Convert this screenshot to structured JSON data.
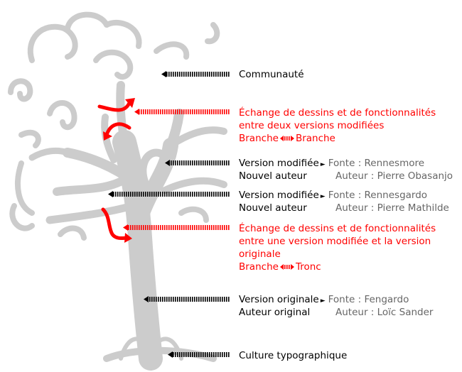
{
  "annotations": {
    "communaute": "Communauté",
    "echange1": {
      "line1": "Échange de dessins et de fonctionnalités",
      "line2": "entre deux versions modifiées",
      "from": "Branche",
      "to": "Branche"
    },
    "version1": {
      "title": "Version modifiée",
      "author_label": "Nouvel auteur",
      "font": "Fonte : Rennesmore",
      "author": "Auteur : Pierre Obasanjo"
    },
    "version2": {
      "title": "Version modifiée",
      "author_label": "Nouvel auteur",
      "font": "Fonte : Rennesgardo",
      "author": "Auteur : Pierre Mathilde"
    },
    "echange2": {
      "line1": "Échange de dessins et de fonctionnalités",
      "line2": "entre une version modifiée et la version",
      "line3": "originale",
      "from": "Branche",
      "to": "Tronc"
    },
    "original": {
      "title": "Version originale",
      "author_label": "Auteur original",
      "font": "Fonte : Fengardo",
      "author": "Auteur : Loïc Sander"
    },
    "culture": "Culture typographique"
  },
  "colors": {
    "tree": "#cccccc",
    "exchange": "#ff0000",
    "pointer": "#000000",
    "meta": "#666666"
  }
}
